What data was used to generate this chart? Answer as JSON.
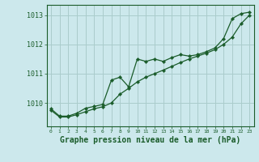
{
  "background_color": "#cce8ec",
  "grid_color": "#aacccc",
  "line_color": "#1a5c2a",
  "marker_color": "#1a5c2a",
  "xlabel": "Graphe pression niveau de la mer (hPa)",
  "xlabel_fontsize": 7,
  "x_ticks": [
    0,
    1,
    2,
    3,
    4,
    5,
    6,
    7,
    8,
    9,
    10,
    11,
    12,
    13,
    14,
    15,
    16,
    17,
    18,
    19,
    20,
    21,
    22,
    23
  ],
  "ylim": [
    1009.2,
    1013.35
  ],
  "xlim": [
    -0.5,
    23.5
  ],
  "ytick_labels": [
    "1010",
    "1011",
    "1012",
    "1013"
  ],
  "ytick_values": [
    1010,
    1011,
    1012,
    1013
  ],
  "series1_x": [
    0,
    1,
    2,
    3,
    4,
    5,
    6,
    7,
    8,
    9,
    10,
    11,
    12,
    13,
    14,
    15,
    16,
    17,
    18,
    19,
    20,
    21,
    22,
    23
  ],
  "series1_y": [
    1009.8,
    1009.55,
    1009.55,
    1009.65,
    1009.82,
    1009.88,
    1009.95,
    1010.78,
    1010.88,
    1010.55,
    1011.5,
    1011.42,
    1011.5,
    1011.42,
    1011.55,
    1011.65,
    1011.6,
    1011.65,
    1011.75,
    1011.88,
    1012.2,
    1012.88,
    1013.05,
    1013.1
  ],
  "series2_x": [
    0,
    1,
    2,
    3,
    4,
    5,
    6,
    7,
    8,
    9,
    10,
    11,
    12,
    13,
    14,
    15,
    16,
    17,
    18,
    19,
    20,
    21,
    22,
    23
  ],
  "series2_y": [
    1009.75,
    1009.52,
    1009.52,
    1009.6,
    1009.7,
    1009.8,
    1009.87,
    1010.0,
    1010.3,
    1010.5,
    1010.72,
    1010.88,
    1011.0,
    1011.12,
    1011.25,
    1011.38,
    1011.5,
    1011.6,
    1011.7,
    1011.82,
    1012.0,
    1012.25,
    1012.7,
    1013.0
  ]
}
